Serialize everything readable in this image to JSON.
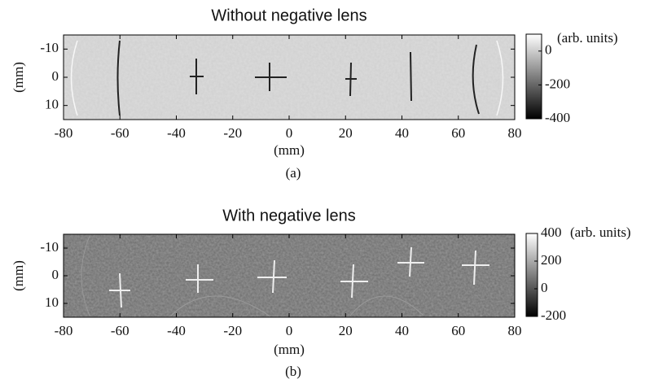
{
  "chart_data": [
    {
      "type": "image",
      "title": "Without negative lens",
      "xlabel": "(mm)",
      "ylabel": "(mm)",
      "caption": "(a)",
      "xlim": [
        -80,
        80
      ],
      "xticks": [
        -80,
        -60,
        -40,
        -20,
        0,
        20,
        40,
        60,
        80
      ],
      "ylim": [
        -15,
        15
      ],
      "yticks": [
        -10,
        0,
        10
      ],
      "colorbar_label": "(arb.  units)",
      "clim": [
        -400,
        100
      ],
      "cticks": [
        0,
        -200,
        -400
      ]
    },
    {
      "type": "image",
      "title": "With negative lens",
      "xlabel": "(mm)",
      "ylabel": "(mm)",
      "caption": "(b)",
      "xlim": [
        -80,
        80
      ],
      "xticks": [
        -80,
        -60,
        -40,
        -20,
        0,
        20,
        40,
        60,
        80
      ],
      "ylim": [
        -15,
        15
      ],
      "yticks": [
        -10,
        0,
        10
      ],
      "colorbar_label": "(arb. units)",
      "clim": [
        -200,
        400
      ],
      "cticks": [
        400,
        200,
        0,
        -200
      ]
    }
  ]
}
